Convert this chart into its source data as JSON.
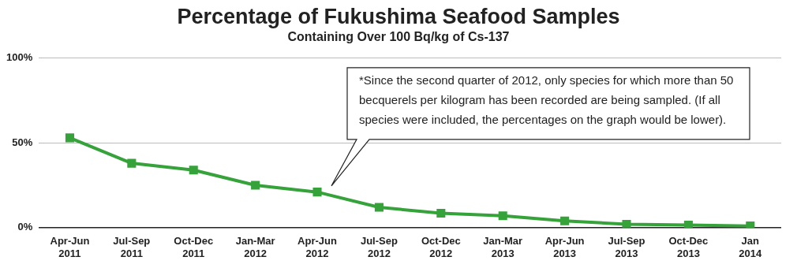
{
  "chart_data": {
    "type": "line",
    "title": "Percentage of Fukushima Seafood Samples",
    "subtitle": "Containing Over 100 Bq/kg of Cs-137",
    "categories": [
      "Apr-Jun 2011",
      "Jul-Sep 2011",
      "Oct-Dec 2011",
      "Jan-Mar 2012",
      "Apr-Jun 2012",
      "Jul-Sep 2012",
      "Oct-Dec 2012",
      "Jan-Mar 2013",
      "Apr-Jun 2013",
      "Jul-Sep 2013",
      "Oct-Dec 2013",
      "Jan 2014"
    ],
    "series": [
      {
        "color": "#35a23a",
        "values": [
          53,
          38,
          34,
          25,
          21,
          12,
          8.5,
          7,
          4,
          2,
          1.5,
          1
        ]
      }
    ],
    "ylim": [
      0,
      100
    ],
    "yticks": [
      {
        "value": 0,
        "label": "0%"
      },
      {
        "value": 50,
        "label": "50%"
      },
      {
        "value": 100,
        "label": "100%"
      }
    ],
    "grid": "y",
    "legend": false,
    "marker": "square",
    "line_style": "solid",
    "annotations": [
      "*Since the second quarter of 2012, only species for which more than 50 becquerels per kilogram has been recorded are being sampled. (If all species were included, the percentages on the graph would be lower)."
    ]
  }
}
